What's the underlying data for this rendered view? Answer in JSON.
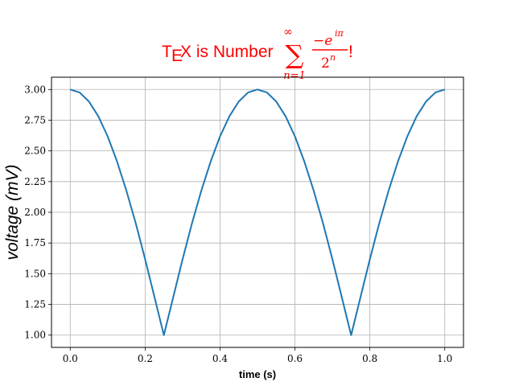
{
  "chart_data": {
    "type": "line",
    "title": {
      "tex_T": "T",
      "tex_E": "E",
      "tex_X": "X",
      "text": " is Number ",
      "sum_symbol": "∑",
      "sum_upper": "∞",
      "sum_lower": "n=1",
      "numerator": "−e",
      "numerator_exp": "iπ",
      "denominator": "2",
      "denominator_exp": "n",
      "suffix": "!"
    },
    "xlabel": "time (s)",
    "ylabel": "voltage (mV)",
    "xlim": [
      -0.05,
      1.05
    ],
    "ylim": [
      0.9,
      3.1
    ],
    "x_ticks": [
      0.0,
      0.2,
      0.4,
      0.6,
      0.8,
      1.0
    ],
    "x_tick_labels": [
      "0.0",
      "0.2",
      "0.4",
      "0.6",
      "0.8",
      "1.0"
    ],
    "y_ticks": [
      1.0,
      1.25,
      1.5,
      1.75,
      2.0,
      2.25,
      2.5,
      2.75,
      3.0
    ],
    "y_tick_labels": [
      "1.00",
      "1.25",
      "1.50",
      "1.75",
      "2.00",
      "2.25",
      "2.50",
      "2.75",
      "3.00"
    ],
    "grid": true,
    "series": [
      {
        "color": "#1f77b4",
        "x": [
          0.0,
          0.025,
          0.05,
          0.075,
          0.1,
          0.125,
          0.15,
          0.175,
          0.2,
          0.225,
          0.25,
          0.275,
          0.3,
          0.325,
          0.35,
          0.375,
          0.4,
          0.425,
          0.45,
          0.475,
          0.5,
          0.525,
          0.55,
          0.575,
          0.6,
          0.625,
          0.65,
          0.675,
          0.7,
          0.725,
          0.75,
          0.775,
          0.8,
          0.825,
          0.85,
          0.875,
          0.9,
          0.925,
          0.95,
          0.975,
          1.0
        ],
        "y": [
          3.0,
          2.976,
          2.902,
          2.782,
          2.618,
          2.414,
          2.176,
          1.91,
          1.618,
          1.309,
          1.0,
          1.309,
          1.618,
          1.91,
          2.176,
          2.414,
          2.618,
          2.782,
          2.902,
          2.976,
          3.0,
          2.976,
          2.902,
          2.782,
          2.618,
          2.414,
          2.176,
          1.91,
          1.618,
          1.309,
          1.0,
          1.309,
          1.618,
          1.91,
          2.176,
          2.414,
          2.618,
          2.782,
          2.902,
          2.976,
          3.0
        ]
      }
    ],
    "axes_color": "#000000",
    "grid_color": "#b0b0b0",
    "title_color": "#ff0000"
  }
}
